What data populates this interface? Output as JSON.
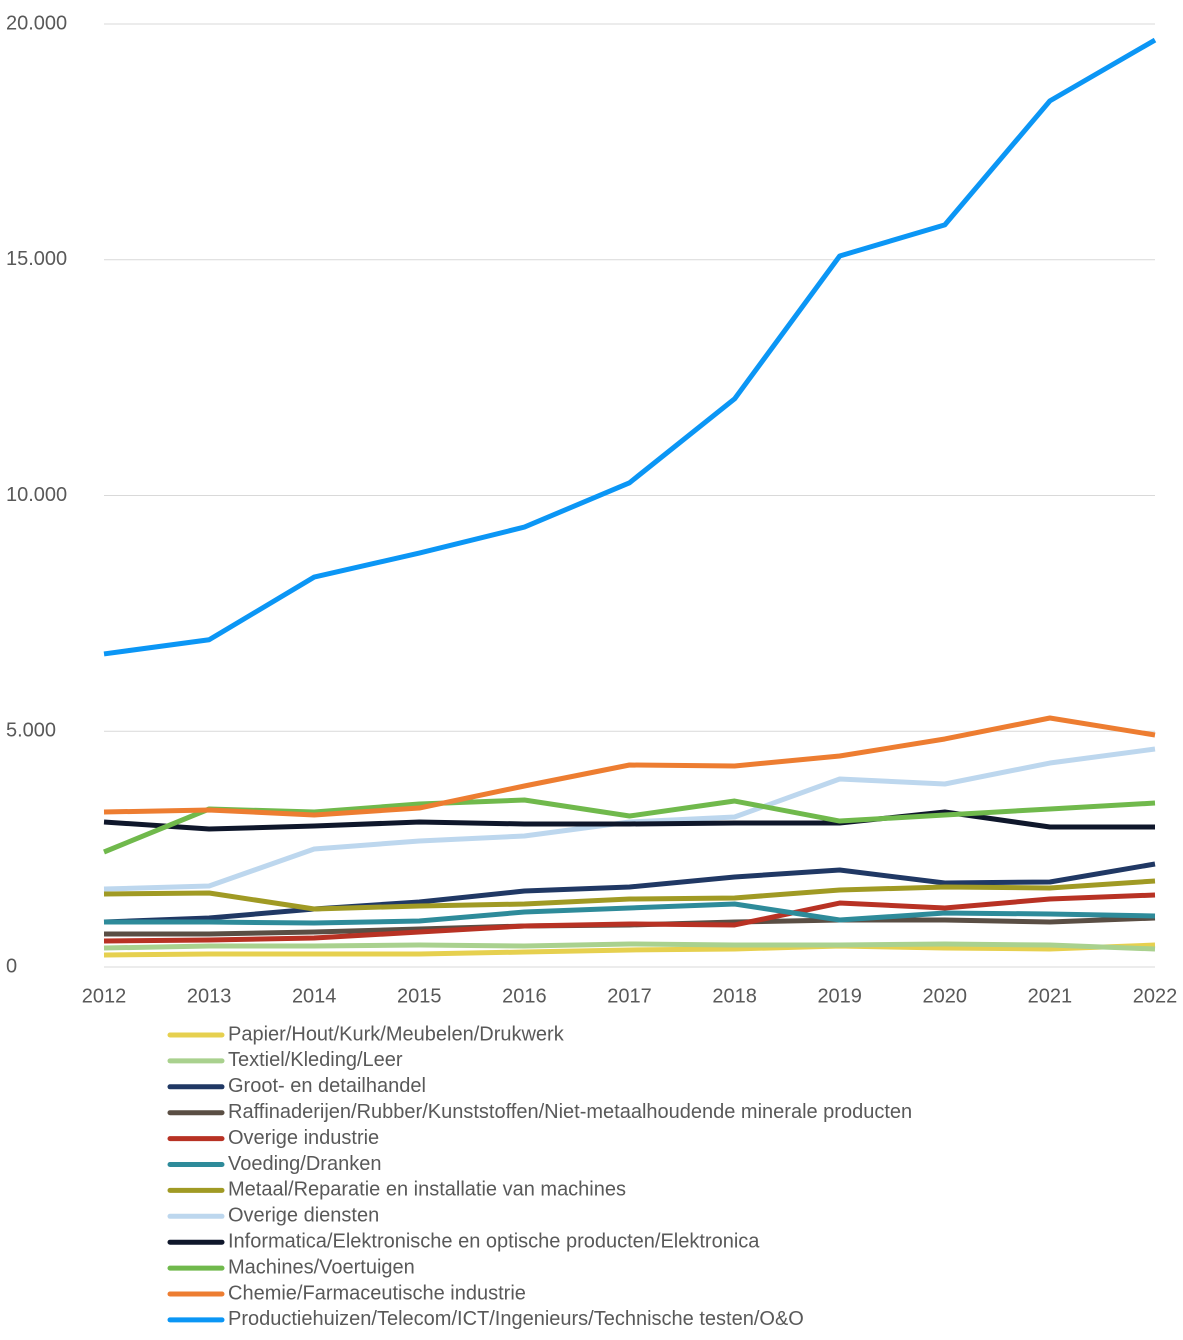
{
  "chart_data": {
    "type": "line",
    "categories": [
      "2012",
      "2013",
      "2014",
      "2015",
      "2016",
      "2017",
      "2018",
      "2019",
      "2020",
      "2021",
      "2022"
    ],
    "ylim": [
      0,
      20000
    ],
    "yticks": [
      0,
      {
        "value": 5000,
        "label": "5.000"
      },
      {
        "value": 10000,
        "label": "10.000"
      },
      {
        "value": 15000,
        "label": "15.000"
      },
      {
        "value": 20000,
        "label": "20.000"
      }
    ],
    "grid": true,
    "legend": "bottom",
    "series": [
      {
        "name": "Papier/Hout/Kurk/Meubelen/Drukwerk",
        "color": "#e6d04f",
        "values": [
          255,
          276,
          276,
          276,
          318,
          361,
          382,
          445,
          403,
          382,
          466
        ]
      },
      {
        "name": "Textiel/Kleding/Leer",
        "color": "#a9d18e",
        "values": [
          403,
          445,
          445,
          466,
          445,
          488,
          466,
          466,
          488,
          466,
          382
        ]
      },
      {
        "name": "Groot- en detailhandel",
        "color": "#203864",
        "values": [
          954,
          1039,
          1230,
          1379,
          1612,
          1697,
          1909,
          2057,
          1782,
          1803,
          2185
        ]
      },
      {
        "name": "Raffinaderijen/Rubber/Kunststoffen/Niet-metaalhoudende minerale producten",
        "color": "#5a4e44",
        "values": [
          700,
          700,
          742,
          806,
          870,
          891,
          954,
          997,
          997,
          954,
          1039
        ]
      },
      {
        "name": "Overige industrie",
        "color": "#b83224",
        "values": [
          551,
          573,
          615,
          742,
          870,
          912,
          891,
          1357,
          1251,
          1442,
          1527
        ]
      },
      {
        "name": "Voeding/Dranken",
        "color": "#2e8b9a",
        "values": [
          954,
          954,
          933,
          976,
          1166,
          1251,
          1336,
          997,
          1145,
          1124,
          1082
        ]
      },
      {
        "name": "Metaal/Reparatie en installatie van machines",
        "color": "#a09a24",
        "values": [
          1548,
          1570,
          1230,
          1294,
          1336,
          1442,
          1464,
          1633,
          1697,
          1676,
          1824
        ]
      },
      {
        "name": "Overige diensten",
        "color": "#bdd7ee",
        "values": [
          1654,
          1718,
          2503,
          2672,
          2778,
          3075,
          3181,
          3987,
          3881,
          4326,
          4623
        ]
      },
      {
        "name": "Informatica/Elektronische en optische producten/Elektronica",
        "color": "#0f172b",
        "values": [
          3075,
          2927,
          2990,
          3075,
          3033,
          3033,
          3054,
          3054,
          3287,
          2969,
          2969
        ]
      },
      {
        "name": "Machines/Voertuigen",
        "color": "#70b94c",
        "values": [
          2439,
          3351,
          3287,
          3457,
          3542,
          3202,
          3520,
          3096,
          3224,
          3351,
          3478
        ]
      },
      {
        "name": "Chemie/Farmaceutische industrie",
        "color": "#ed7d31",
        "values": [
          3287,
          3330,
          3224,
          3372,
          3839,
          4284,
          4263,
          4475,
          4836,
          5281,
          4920
        ]
      },
      {
        "name": "Productiehuizen/Telecom/ICT/Ingenieurs/Technische testen/O&O",
        "color": "#0b96f5",
        "values": [
          6640,
          6940,
          8270,
          8780,
          9330,
          10270,
          12050,
          15080,
          15740,
          18370,
          19660
        ]
      }
    ]
  }
}
